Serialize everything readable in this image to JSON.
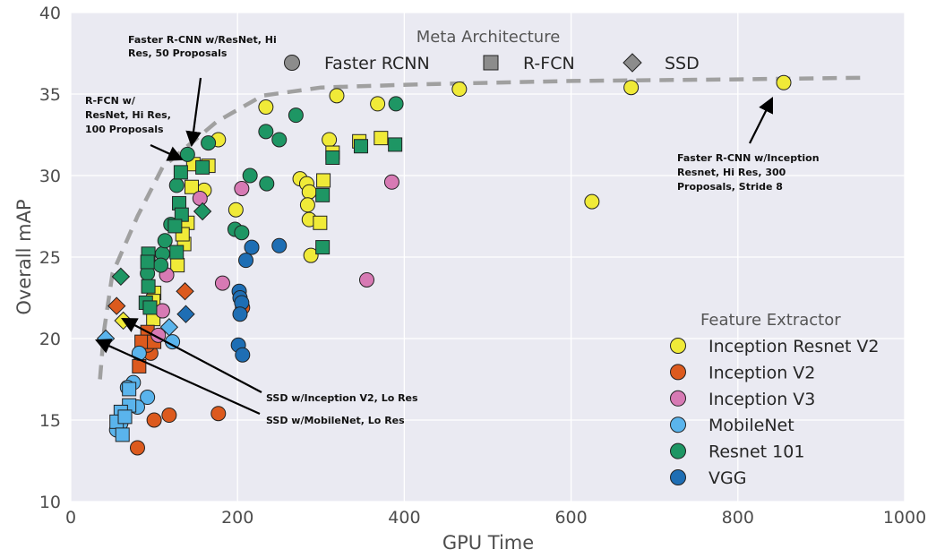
{
  "chart_data": {
    "type": "scatter",
    "xlabel": "GPU Time",
    "ylabel": "Overall mAP",
    "xlim": [
      0,
      1000
    ],
    "ylim": [
      10,
      40
    ],
    "xticks": [
      "0",
      "200",
      "400",
      "600",
      "800",
      "1000"
    ],
    "yticks": [
      "10",
      "15",
      "20",
      "25",
      "30",
      "35",
      "40"
    ],
    "grid": true,
    "background": "#eaeaf2",
    "meta_legend": {
      "title": "Meta Architecture",
      "placement": "top-center",
      "items": [
        {
          "label": "Faster RCNN",
          "shape": "circle"
        },
        {
          "label": "R-FCN",
          "shape": "square"
        },
        {
          "label": "SSD",
          "shape": "diamond"
        }
      ]
    },
    "feature_legend": {
      "title": "Feature Extractor",
      "placement": "bottom-right",
      "items": [
        {
          "label": "Inception Resnet V2",
          "color": "#f0ea38"
        },
        {
          "label": "Inception V2",
          "color": "#dc5a1e"
        },
        {
          "label": "Inception V3",
          "color": "#d77ab4"
        },
        {
          "label": "MobileNet",
          "color": "#5ab4ec"
        },
        {
          "label": "Resnet 101",
          "color": "#1e9664"
        },
        {
          "label": "VGG",
          "color": "#1e6eb4"
        }
      ]
    },
    "frontier": [
      [
        35,
        17.5
      ],
      [
        40,
        20.5
      ],
      [
        50,
        24
      ],
      [
        80,
        27.5
      ],
      [
        110,
        30.5
      ],
      [
        140,
        31.8
      ],
      [
        175,
        33.3
      ],
      [
        230,
        34.9
      ],
      [
        300,
        35.4
      ],
      [
        420,
        35.6
      ],
      [
        600,
        35.8
      ],
      [
        800,
        35.9
      ],
      [
        950,
        36
      ]
    ],
    "series": [
      {
        "name": "Inception Resnet V2",
        "color": "#f0ea38",
        "points": [
          {
            "x": 855,
            "y": 35.7,
            "m": "circle"
          },
          {
            "x": 672,
            "y": 35.4,
            "m": "circle"
          },
          {
            "x": 466,
            "y": 35.3,
            "m": "circle"
          },
          {
            "x": 625,
            "y": 28.4,
            "m": "circle"
          },
          {
            "x": 368,
            "y": 34.4,
            "m": "circle"
          },
          {
            "x": 319,
            "y": 34.9,
            "m": "circle"
          },
          {
            "x": 234,
            "y": 34.2,
            "m": "circle"
          },
          {
            "x": 177,
            "y": 32.2,
            "m": "circle"
          },
          {
            "x": 310,
            "y": 32.2,
            "m": "circle"
          },
          {
            "x": 275,
            "y": 29.8,
            "m": "circle"
          },
          {
            "x": 283,
            "y": 29.5,
            "m": "circle"
          },
          {
            "x": 286,
            "y": 29.0,
            "m": "circle"
          },
          {
            "x": 284,
            "y": 28.2,
            "m": "circle"
          },
          {
            "x": 286,
            "y": 27.3,
            "m": "circle"
          },
          {
            "x": 288,
            "y": 25.1,
            "m": "circle"
          },
          {
            "x": 198,
            "y": 27.9,
            "m": "circle"
          },
          {
            "x": 160,
            "y": 29.1,
            "m": "circle"
          },
          {
            "x": 346,
            "y": 32.1,
            "m": "square"
          },
          {
            "x": 372,
            "y": 32.3,
            "m": "square"
          },
          {
            "x": 314,
            "y": 31.4,
            "m": "square"
          },
          {
            "x": 303,
            "y": 29.7,
            "m": "square"
          },
          {
            "x": 299,
            "y": 27.1,
            "m": "square"
          },
          {
            "x": 147,
            "y": 30.7,
            "m": "square"
          },
          {
            "x": 165,
            "y": 30.6,
            "m": "square"
          },
          {
            "x": 145,
            "y": 29.3,
            "m": "square"
          },
          {
            "x": 140,
            "y": 27.1,
            "m": "square"
          },
          {
            "x": 136,
            "y": 25.8,
            "m": "square"
          },
          {
            "x": 134,
            "y": 26.4,
            "m": "square"
          },
          {
            "x": 128,
            "y": 24.5,
            "m": "square"
          },
          {
            "x": 100,
            "y": 22.8,
            "m": "square"
          },
          {
            "x": 99,
            "y": 22.3,
            "m": "square"
          },
          {
            "x": 99,
            "y": 21.2,
            "m": "square"
          },
          {
            "x": 63,
            "y": 21.1,
            "m": "diamond"
          }
        ]
      },
      {
        "name": "Inception V2",
        "color": "#dc5a1e",
        "points": [
          {
            "x": 177,
            "y": 15.4,
            "m": "circle"
          },
          {
            "x": 118,
            "y": 15.3,
            "m": "circle"
          },
          {
            "x": 100,
            "y": 15.0,
            "m": "circle"
          },
          {
            "x": 80,
            "y": 13.3,
            "m": "circle"
          },
          {
            "x": 206,
            "y": 21.9,
            "m": "circle"
          },
          {
            "x": 96,
            "y": 19.1,
            "m": "circle"
          },
          {
            "x": 92,
            "y": 19.6,
            "m": "circle"
          },
          {
            "x": 92,
            "y": 20.4,
            "m": "square"
          },
          {
            "x": 85,
            "y": 19.8,
            "m": "square"
          },
          {
            "x": 100,
            "y": 19.8,
            "m": "square"
          },
          {
            "x": 82,
            "y": 18.3,
            "m": "square"
          },
          {
            "x": 55,
            "y": 22.0,
            "m": "diamond"
          },
          {
            "x": 137,
            "y": 22.9,
            "m": "diamond"
          }
        ]
      },
      {
        "name": "Inception V3",
        "color": "#d77ab4",
        "points": [
          {
            "x": 385,
            "y": 29.6,
            "m": "circle"
          },
          {
            "x": 355,
            "y": 23.6,
            "m": "circle"
          },
          {
            "x": 205,
            "y": 29.2,
            "m": "circle"
          },
          {
            "x": 182,
            "y": 23.4,
            "m": "circle"
          },
          {
            "x": 115,
            "y": 23.9,
            "m": "circle"
          },
          {
            "x": 110,
            "y": 21.7,
            "m": "circle"
          },
          {
            "x": 155,
            "y": 28.6,
            "m": "circle"
          },
          {
            "x": 105,
            "y": 20.2,
            "m": "circle"
          }
        ]
      },
      {
        "name": "MobileNet",
        "color": "#5ab4ec",
        "points": [
          {
            "x": 92,
            "y": 16.4,
            "m": "circle"
          },
          {
            "x": 80,
            "y": 15.8,
            "m": "circle"
          },
          {
            "x": 75,
            "y": 17.3,
            "m": "circle"
          },
          {
            "x": 68,
            "y": 17.0,
            "m": "circle"
          },
          {
            "x": 55,
            "y": 14.4,
            "m": "circle"
          },
          {
            "x": 60,
            "y": 14.8,
            "m": "circle"
          },
          {
            "x": 122,
            "y": 19.8,
            "m": "circle"
          },
          {
            "x": 82,
            "y": 19.1,
            "m": "circle"
          },
          {
            "x": 70,
            "y": 16.9,
            "m": "square"
          },
          {
            "x": 70,
            "y": 15.9,
            "m": "square"
          },
          {
            "x": 60,
            "y": 15.5,
            "m": "square"
          },
          {
            "x": 55,
            "y": 14.9,
            "m": "square"
          },
          {
            "x": 62,
            "y": 14.1,
            "m": "square"
          },
          {
            "x": 65,
            "y": 15.2,
            "m": "square"
          },
          {
            "x": 42,
            "y": 20.0,
            "m": "diamond"
          },
          {
            "x": 118,
            "y": 20.7,
            "m": "diamond"
          }
        ]
      },
      {
        "name": "Resnet 101",
        "color": "#1e9664",
        "points": [
          {
            "x": 390,
            "y": 34.4,
            "m": "circle"
          },
          {
            "x": 270,
            "y": 33.7,
            "m": "circle"
          },
          {
            "x": 234,
            "y": 32.7,
            "m": "circle"
          },
          {
            "x": 250,
            "y": 32.2,
            "m": "circle"
          },
          {
            "x": 165,
            "y": 32.0,
            "m": "circle"
          },
          {
            "x": 140,
            "y": 31.3,
            "m": "circle"
          },
          {
            "x": 215,
            "y": 30.0,
            "m": "circle"
          },
          {
            "x": 235,
            "y": 29.5,
            "m": "circle"
          },
          {
            "x": 127,
            "y": 29.4,
            "m": "circle"
          },
          {
            "x": 197,
            "y": 26.7,
            "m": "circle"
          },
          {
            "x": 205,
            "y": 26.5,
            "m": "circle"
          },
          {
            "x": 110,
            "y": 25.2,
            "m": "circle"
          },
          {
            "x": 113,
            "y": 26.0,
            "m": "circle"
          },
          {
            "x": 120,
            "y": 27.0,
            "m": "circle"
          },
          {
            "x": 108,
            "y": 24.5,
            "m": "circle"
          },
          {
            "x": 92,
            "y": 24.0,
            "m": "circle"
          },
          {
            "x": 389,
            "y": 31.9,
            "m": "square"
          },
          {
            "x": 348,
            "y": 31.8,
            "m": "square"
          },
          {
            "x": 314,
            "y": 31.1,
            "m": "square"
          },
          {
            "x": 302,
            "y": 28.8,
            "m": "square"
          },
          {
            "x": 302,
            "y": 25.6,
            "m": "square"
          },
          {
            "x": 132,
            "y": 30.2,
            "m": "square"
          },
          {
            "x": 158,
            "y": 30.5,
            "m": "square"
          },
          {
            "x": 130,
            "y": 28.3,
            "m": "square"
          },
          {
            "x": 133,
            "y": 27.6,
            "m": "square"
          },
          {
            "x": 125,
            "y": 26.9,
            "m": "square"
          },
          {
            "x": 127,
            "y": 25.3,
            "m": "square"
          },
          {
            "x": 93,
            "y": 25.2,
            "m": "square"
          },
          {
            "x": 92,
            "y": 24.7,
            "m": "square"
          },
          {
            "x": 93,
            "y": 23.2,
            "m": "square"
          },
          {
            "x": 90,
            "y": 22.2,
            "m": "square"
          },
          {
            "x": 95,
            "y": 21.9,
            "m": "square"
          },
          {
            "x": 60,
            "y": 23.8,
            "m": "diamond"
          },
          {
            "x": 158,
            "y": 27.8,
            "m": "diamond"
          }
        ]
      },
      {
        "name": "VGG",
        "color": "#1e6eb4",
        "points": [
          {
            "x": 250,
            "y": 25.7,
            "m": "circle"
          },
          {
            "x": 217,
            "y": 25.6,
            "m": "circle"
          },
          {
            "x": 210,
            "y": 24.8,
            "m": "circle"
          },
          {
            "x": 202,
            "y": 22.9,
            "m": "circle"
          },
          {
            "x": 203,
            "y": 22.5,
            "m": "circle"
          },
          {
            "x": 205,
            "y": 22.2,
            "m": "circle"
          },
          {
            "x": 203,
            "y": 21.5,
            "m": "circle"
          },
          {
            "x": 201,
            "y": 19.6,
            "m": "circle"
          },
          {
            "x": 206,
            "y": 19.0,
            "m": "circle"
          },
          {
            "x": 138,
            "y": 21.5,
            "m": "diamond"
          }
        ]
      }
    ],
    "annotations": [
      {
        "lines": [
          "Faster R-CNN w/ResNet, Hi",
          "Res, 50 Proposals"
        ]
      },
      {
        "lines": [
          "R-FCN w/",
          "ResNet, Hi Res,",
          "100 Proposals"
        ]
      },
      {
        "lines": [
          "Faster R-CNN w/Inception",
          "Resnet, Hi Res, 300",
          "Proposals, Stride 8"
        ]
      },
      {
        "lines": [
          "SSD w/Inception V2, Lo Res"
        ]
      },
      {
        "lines": [
          "SSD w/MobileNet, Lo Res"
        ]
      }
    ]
  }
}
